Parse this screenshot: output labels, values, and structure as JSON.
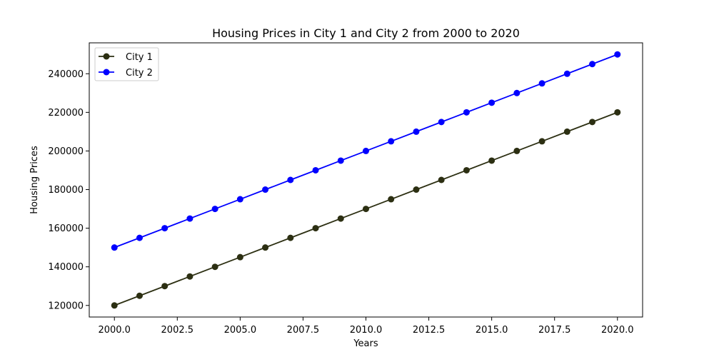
{
  "chart_data": {
    "type": "line",
    "title": "Housing Prices in City 1 and City 2 from 2000 to 2020",
    "xlabel": "Years",
    "ylabel": "Housing Prices",
    "x": [
      2000,
      2001,
      2002,
      2003,
      2004,
      2005,
      2006,
      2007,
      2008,
      2009,
      2010,
      2011,
      2012,
      2013,
      2014,
      2015,
      2016,
      2017,
      2018,
      2019,
      2020
    ],
    "xlim": [
      1999,
      2021
    ],
    "ylim": [
      114000,
      256000
    ],
    "xticks": [
      2000.0,
      2002.5,
      2005.0,
      2007.5,
      2010.0,
      2012.5,
      2015.0,
      2017.5,
      2020.0
    ],
    "xtick_labels": [
      "2000.0",
      "2002.5",
      "2005.0",
      "2007.5",
      "2010.0",
      "2012.5",
      "2015.0",
      "2017.5",
      "2020.0"
    ],
    "yticks": [
      120000,
      140000,
      160000,
      180000,
      200000,
      220000,
      240000
    ],
    "ytick_labels": [
      "120000",
      "140000",
      "160000",
      "180000",
      "200000",
      "220000",
      "240000"
    ],
    "grid": false,
    "legend_position": "top-left",
    "series": [
      {
        "name": "City 1",
        "color": "#2c2f12",
        "marker": "circle",
        "values": [
          120000,
          125000,
          130000,
          135000,
          140000,
          145000,
          150000,
          155000,
          160000,
          165000,
          170000,
          175000,
          180000,
          185000,
          190000,
          195000,
          200000,
          205000,
          210000,
          215000,
          220000
        ]
      },
      {
        "name": "City 2",
        "color": "#0000ff",
        "marker": "circle",
        "values": [
          150000,
          155000,
          160000,
          165000,
          170000,
          175000,
          180000,
          185000,
          190000,
          195000,
          200000,
          205000,
          210000,
          215000,
          220000,
          225000,
          230000,
          235000,
          240000,
          245000,
          250000
        ]
      }
    ]
  }
}
